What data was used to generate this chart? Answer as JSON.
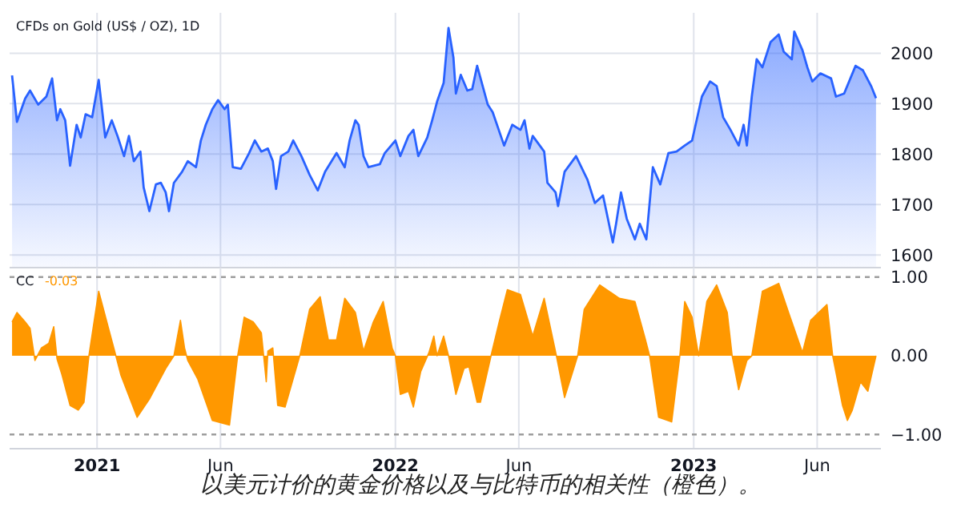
{
  "chart_data": [
    {
      "type": "area",
      "title": "CFDs on Gold (US$ / OZ), 1D",
      "xlim": [
        "2020-09-16",
        "2023-08-18"
      ],
      "ylim": [
        1575,
        2080
      ],
      "yticks": [
        1600,
        1700,
        1800,
        1900,
        2000
      ],
      "xticks": [
        {
          "value": "2021-01-01",
          "label": null
        },
        {
          "value": "2021-06-01",
          "label": null
        },
        {
          "value": "2022-01-01",
          "label": null
        },
        {
          "value": "2022-06-01",
          "label": null
        },
        {
          "value": "2023-01-01",
          "label": null
        },
        {
          "value": "2023-06-01",
          "label": null
        }
      ],
      "tick_labels": "y",
      "grid": true,
      "series": [
        {
          "color": "#2962ff",
          "x": [
            "2020-09-19",
            "2020-09-25",
            "2020-10-05",
            "2020-10-11",
            "2020-10-21",
            "2020-10-31",
            "2020-11-07",
            "2020-11-13",
            "2020-11-17",
            "2020-11-23",
            "2020-11-29",
            "2020-12-07",
            "2020-12-12",
            "2020-12-18",
            "2020-12-26",
            "2021-01-03",
            "2021-01-11",
            "2021-01-19",
            "2021-01-26",
            "2021-02-03",
            "2021-02-09",
            "2021-02-15",
            "2021-02-23",
            "2021-02-27",
            "2021-03-06",
            "2021-03-14",
            "2021-03-20",
            "2021-03-26",
            "2021-03-30",
            "2021-04-05",
            "2021-04-15",
            "2021-04-22",
            "2021-05-02",
            "2021-05-08",
            "2021-05-14",
            "2021-05-22",
            "2021-05-29",
            "2021-06-06",
            "2021-06-10",
            "2021-06-16",
            "2021-06-26",
            "2021-07-06",
            "2021-07-13",
            "2021-07-21",
            "2021-07-29",
            "2021-08-04",
            "2021-08-08",
            "2021-08-14",
            "2021-08-23",
            "2021-08-29",
            "2021-09-08",
            "2021-09-18",
            "2021-09-28",
            "2021-10-07",
            "2021-10-21",
            "2021-10-31",
            "2021-11-06",
            "2021-11-13",
            "2021-11-17",
            "2021-11-23",
            "2021-11-29",
            "2021-12-13",
            "2021-12-19",
            "2022-01-01",
            "2022-01-07",
            "2022-01-17",
            "2022-01-23",
            "2022-01-29",
            "2022-02-09",
            "2022-02-15",
            "2022-02-21",
            "2022-03-01",
            "2022-03-07",
            "2022-03-13",
            "2022-03-16",
            "2022-03-22",
            "2022-03-30",
            "2022-04-05",
            "2022-04-11",
            "2022-04-24",
            "2022-04-30",
            "2022-05-14",
            "2022-05-24",
            "2022-06-03",
            "2022-06-08",
            "2022-06-14",
            "2022-06-18",
            "2022-07-02",
            "2022-07-06",
            "2022-07-16",
            "2022-07-19",
            "2022-07-27",
            "2022-08-10",
            "2022-08-24",
            "2022-09-02",
            "2022-09-12",
            "2022-09-18",
            "2022-09-24",
            "2022-09-28",
            "2022-10-04",
            "2022-10-11",
            "2022-10-21",
            "2022-10-27",
            "2022-11-04",
            "2022-11-12",
            "2022-11-21",
            "2022-12-01",
            "2022-12-11",
            "2022-12-21",
            "2022-12-30",
            "2023-01-11",
            "2023-01-21",
            "2023-01-29",
            "2023-02-06",
            "2023-02-15",
            "2023-02-25",
            "2023-03-03",
            "2023-03-07",
            "2023-03-13",
            "2023-03-19",
            "2023-03-26",
            "2023-04-05",
            "2023-04-15",
            "2023-04-21",
            "2023-05-01",
            "2023-05-04",
            "2023-05-14",
            "2023-05-20",
            "2023-05-26",
            "2023-06-05",
            "2023-06-18",
            "2023-06-24",
            "2023-07-04",
            "2023-07-18",
            "2023-07-27",
            "2023-08-06",
            "2023-08-12"
          ],
          "values": [
            1956,
            1864,
            1910,
            1926,
            1898,
            1914,
            1950,
            1867,
            1889,
            1867,
            1777,
            1858,
            1833,
            1879,
            1873,
            1947,
            1833,
            1867,
            1836,
            1796,
            1836,
            1786,
            1805,
            1734,
            1687,
            1740,
            1743,
            1724,
            1687,
            1743,
            1765,
            1786,
            1774,
            1827,
            1858,
            1889,
            1907,
            1889,
            1898,
            1774,
            1771,
            1802,
            1827,
            1805,
            1811,
            1786,
            1731,
            1796,
            1805,
            1827,
            1796,
            1759,
            1728,
            1765,
            1802,
            1774,
            1827,
            1867,
            1858,
            1796,
            1774,
            1780,
            1802,
            1827,
            1796,
            1836,
            1848,
            1796,
            1833,
            1867,
            1904,
            1941,
            2050,
            1991,
            1920,
            1957,
            1926,
            1929,
            1975,
            1898,
            1883,
            1817,
            1858,
            1848,
            1867,
            1811,
            1836,
            1805,
            1743,
            1724,
            1697,
            1765,
            1796,
            1749,
            1703,
            1718,
            1672,
            1625,
            1662,
            1724,
            1672,
            1631,
            1662,
            1631,
            1774,
            1740,
            1802,
            1805,
            1817,
            1827,
            1914,
            1944,
            1935,
            1873,
            1848,
            1817,
            1858,
            1817,
            1914,
            1988,
            1972,
            2022,
            2037,
            2003,
            1988,
            2043,
            2006,
            1972,
            1944,
            1960,
            1950,
            1914,
            1920,
            1975,
            1966,
            1935,
            1911
          ]
        }
      ]
    },
    {
      "type": "area",
      "title": "CC",
      "subtitle": "-0.03",
      "xlim": [
        "2020-09-16",
        "2023-08-18"
      ],
      "ylim": [
        -1.18,
        1.12
      ],
      "yticks": [
        {
          "value": 1,
          "label": "1.00"
        },
        {
          "value": 0,
          "label": "0.00"
        },
        {
          "value": -1,
          "label": "−1.00"
        }
      ],
      "xticks": [
        {
          "value": "2021-01-01",
          "label": "2021"
        },
        {
          "value": "2021-06-01",
          "label": "Jun"
        },
        {
          "value": "2022-01-01",
          "label": "2022"
        },
        {
          "value": "2022-06-01",
          "label": "Jun"
        },
        {
          "value": "2023-01-01",
          "label": "2023"
        },
        {
          "value": "2023-06-01",
          "label": "Jun"
        }
      ],
      "grid": "x",
      "ref_lines": [
        {
          "axis": "y",
          "value": 1,
          "color": "#9e9e9e",
          "line_style": "dashed"
        },
        {
          "axis": "y",
          "value": -1,
          "color": "#9e9e9e",
          "line_style": "dashed"
        }
      ],
      "annotations": [
        "以美元计价的黄金价格以及与比特币的相关性（橙色）。"
      ],
      "series": [
        {
          "color": "#ff9800",
          "x": [
            "2020-09-19",
            "2020-09-25",
            "2020-10-05",
            "2020-10-11",
            "2020-10-17",
            "2020-10-25",
            "2020-11-03",
            "2020-11-09",
            "2020-11-13",
            "2020-11-19",
            "2020-11-29",
            "2020-12-09",
            "2020-12-16",
            "2020-12-22",
            "2021-01-03",
            "2021-01-15",
            "2021-01-24",
            "2021-01-30",
            "2021-02-19",
            "2021-03-06",
            "2021-03-26",
            "2021-04-05",
            "2021-04-13",
            "2021-04-18",
            "2021-04-22",
            "2021-05-04",
            "2021-05-22",
            "2021-06-12",
            "2021-06-22",
            "2021-06-30",
            "2021-07-11",
            "2021-07-21",
            "2021-07-27",
            "2021-07-29",
            "2021-08-04",
            "2021-08-10",
            "2021-08-19",
            "2021-09-06",
            "2021-09-18",
            "2021-10-01",
            "2021-10-11",
            "2021-10-21",
            "2021-10-31",
            "2021-11-13",
            "2021-11-23",
            "2021-12-05",
            "2021-12-17",
            "2021-12-28",
            "2022-01-01",
            "2022-01-07",
            "2022-01-17",
            "2022-01-23",
            "2022-02-01",
            "2022-02-11",
            "2022-02-17",
            "2022-02-21",
            "2022-03-01",
            "2022-03-07",
            "2022-03-16",
            "2022-03-26",
            "2022-04-01",
            "2022-04-11",
            "2022-04-15",
            "2022-04-28",
            "2022-05-08",
            "2022-05-18",
            "2022-06-03",
            "2022-06-18",
            "2022-07-02",
            "2022-07-17",
            "2022-07-27",
            "2022-08-06",
            "2022-08-12",
            "2022-08-20",
            "2022-09-08",
            "2022-10-02",
            "2022-10-21",
            "2022-11-02",
            "2022-11-08",
            "2022-11-19",
            "2022-12-05",
            "2022-12-15",
            "2022-12-21",
            "2022-12-30",
            "2023-01-07",
            "2023-01-17",
            "2023-01-29",
            "2023-02-11",
            "2023-02-17",
            "2023-02-25",
            "2023-03-07",
            "2023-03-13",
            "2023-03-26",
            "2023-04-15",
            "2023-04-27",
            "2023-05-14",
            "2023-05-24",
            "2023-06-13",
            "2023-06-20",
            "2023-07-02",
            "2023-07-08",
            "2023-07-14",
            "2023-07-24",
            "2023-08-02",
            "2023-08-12"
          ],
          "values": [
            0.43,
            0.55,
            0.43,
            0.35,
            -0.06,
            0.1,
            0.16,
            0.37,
            -0.04,
            -0.24,
            -0.63,
            -0.69,
            -0.59,
            0,
            0.82,
            0.35,
            0,
            -0.24,
            -0.78,
            -0.55,
            -0.16,
            0,
            0.45,
            0.1,
            -0.06,
            -0.29,
            -0.82,
            -0.88,
            0,
            0.49,
            0.43,
            0.29,
            -0.33,
            0.06,
            0.1,
            -0.63,
            -0.65,
            0,
            0.59,
            0.75,
            0.2,
            0.2,
            0.73,
            0.55,
            0.06,
            0.43,
            0.69,
            0.1,
            0,
            -0.49,
            -0.45,
            -0.65,
            -0.2,
            0.04,
            0.25,
            0,
            0.25,
            0,
            -0.49,
            -0.16,
            -0.14,
            -0.59,
            -0.59,
            0,
            0.43,
            0.84,
            0.78,
            0.25,
            0.73,
            0,
            -0.53,
            -0.2,
            0,
            0.59,
            0.9,
            0.73,
            0.69,
            0.24,
            0,
            -0.78,
            -0.84,
            0,
            0.69,
            0.49,
            0,
            0.69,
            0.9,
            0.55,
            0,
            -0.43,
            -0.06,
            0,
            0.82,
            0.92,
            0.55,
            0.04,
            0.45,
            0.65,
            0,
            -0.63,
            -0.82,
            -0.69,
            -0.33,
            -0.45,
            0
          ]
        }
      ]
    }
  ]
}
